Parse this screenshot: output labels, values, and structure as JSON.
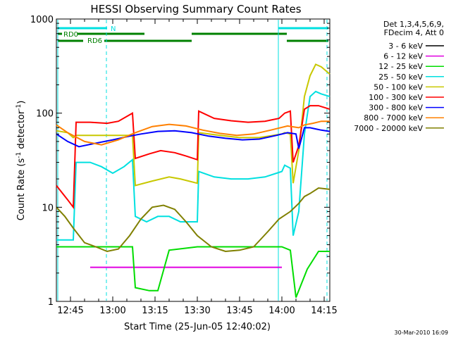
{
  "chart_data": {
    "type": "line",
    "title": "HESSI Observing Summary Count Rates",
    "xlabel": "Start Time (25-Jun-05 12:40:02)",
    "ylabel_main": "Count Rate (s",
    "ylabel_sup1": "-1",
    "ylabel_mid": " detector",
    "ylabel_sup2": "-1",
    "ylabel_end": ")",
    "y_scale": "log",
    "ylim": [
      1,
      1000
    ],
    "xlim_minutes": [
      0,
      97
    ],
    "xticks": [
      {
        "label": "12:45",
        "t": 5
      },
      {
        "label": "13:00",
        "t": 20
      },
      {
        "label": "13:15",
        "t": 35
      },
      {
        "label": "13:30",
        "t": 50
      },
      {
        "label": "13:45",
        "t": 65
      },
      {
        "label": "14:00",
        "t": 80
      },
      {
        "label": "14:15",
        "t": 95
      }
    ],
    "yticks": [
      {
        "label": "1",
        "v": 1
      },
      {
        "label": "10",
        "v": 10
      },
      {
        "label": "100",
        "v": 100
      },
      {
        "label": "1000",
        "v": 1000
      }
    ],
    "legend_header": [
      "Det 1,3,4,5,6,9,",
      "FDecim 4, Att 0"
    ],
    "legend_placement": "right",
    "footer_date": "30-Mar-2010 16:09",
    "flag_labels": {
      "rd0": "RD0",
      "rd6": "RD6",
      "n": "N"
    },
    "series": [
      {
        "name": "3 - 6 keV",
        "color": "#000000",
        "points": []
      },
      {
        "name": "6 - 12 keV",
        "color": "#e000e0",
        "points": [
          [
            12,
            2.3
          ],
          [
            35,
            2.3
          ],
          [
            50,
            2.3
          ],
          [
            72,
            2.3
          ],
          [
            80,
            2.3
          ]
        ]
      },
      {
        "name": "12 - 25 keV",
        "color": "#00dd00",
        "points": [
          [
            0,
            3.8
          ],
          [
            20,
            3.8
          ],
          [
            27,
            3.8
          ],
          [
            28,
            1.4
          ],
          [
            33,
            1.3
          ],
          [
            36,
            1.3
          ],
          [
            40,
            3.5
          ],
          [
            50,
            3.8
          ],
          [
            65,
            3.8
          ],
          [
            80,
            3.8
          ],
          [
            83,
            3.5
          ],
          [
            85,
            1.1
          ],
          [
            89,
            2.2
          ],
          [
            93,
            3.4
          ],
          [
            97,
            3.4
          ]
        ]
      },
      {
        "name": "25 - 50 keV",
        "color": "#00e0e0",
        "points": [
          [
            0,
            4.5
          ],
          [
            6,
            4.5
          ],
          [
            7,
            30
          ],
          [
            12,
            30
          ],
          [
            16,
            27
          ],
          [
            20,
            23
          ],
          [
            24,
            27
          ],
          [
            27,
            32
          ],
          [
            28,
            8
          ],
          [
            32,
            7
          ],
          [
            36,
            8
          ],
          [
            40,
            8
          ],
          [
            44,
            7
          ],
          [
            50,
            7
          ],
          [
            50.5,
            24
          ],
          [
            56,
            21
          ],
          [
            62,
            20
          ],
          [
            68,
            20
          ],
          [
            74,
            21
          ],
          [
            80,
            24
          ],
          [
            81,
            28
          ],
          [
            83,
            26
          ],
          [
            84,
            5
          ],
          [
            86,
            9
          ],
          [
            88,
            60
          ],
          [
            90,
            150
          ],
          [
            92,
            170
          ],
          [
            94,
            160
          ],
          [
            97,
            150
          ]
        ]
      },
      {
        "name": "50 - 100 keV",
        "color": "#c8c800",
        "points": [
          [
            0,
            65
          ],
          [
            4,
            62
          ],
          [
            6,
            55
          ],
          [
            7,
            58
          ],
          [
            16,
            58
          ],
          [
            27,
            58
          ],
          [
            28,
            17
          ],
          [
            34,
            19
          ],
          [
            40,
            21
          ],
          [
            44,
            20
          ],
          [
            50,
            18
          ],
          [
            50.5,
            62
          ],
          [
            58,
            58
          ],
          [
            65,
            55
          ],
          [
            72,
            55
          ],
          [
            80,
            60
          ],
          [
            81,
            62
          ],
          [
            83,
            60
          ],
          [
            84,
            18
          ],
          [
            86,
            40
          ],
          [
            88,
            150
          ],
          [
            90,
            250
          ],
          [
            92,
            330
          ],
          [
            94,
            310
          ],
          [
            97,
            260
          ]
        ]
      },
      {
        "name": "100 - 300 keV",
        "color": "#ff0000",
        "points": [
          [
            0,
            17
          ],
          [
            4,
            12
          ],
          [
            6,
            10
          ],
          [
            7,
            80
          ],
          [
            12,
            80
          ],
          [
            18,
            78
          ],
          [
            22,
            82
          ],
          [
            27,
            100
          ],
          [
            28,
            33
          ],
          [
            33,
            37
          ],
          [
            37,
            40
          ],
          [
            42,
            38
          ],
          [
            46,
            35
          ],
          [
            50,
            32
          ],
          [
            50.5,
            105
          ],
          [
            56,
            88
          ],
          [
            62,
            83
          ],
          [
            68,
            80
          ],
          [
            74,
            82
          ],
          [
            79,
            88
          ],
          [
            81,
            100
          ],
          [
            83,
            105
          ],
          [
            84,
            30
          ],
          [
            86,
            45
          ],
          [
            88,
            110
          ],
          [
            90,
            120
          ],
          [
            93,
            120
          ],
          [
            97,
            110
          ]
        ]
      },
      {
        "name": "300 - 800 keV",
        "color": "#0000ff",
        "points": [
          [
            0,
            60
          ],
          [
            4,
            50
          ],
          [
            8,
            44
          ],
          [
            14,
            48
          ],
          [
            20,
            52
          ],
          [
            26,
            57
          ],
          [
            30,
            60
          ],
          [
            36,
            64
          ],
          [
            42,
            65
          ],
          [
            48,
            62
          ],
          [
            54,
            57
          ],
          [
            60,
            54
          ],
          [
            66,
            52
          ],
          [
            72,
            53
          ],
          [
            78,
            58
          ],
          [
            82,
            62
          ],
          [
            85,
            60
          ],
          [
            86,
            42
          ],
          [
            88,
            70
          ],
          [
            90,
            70
          ],
          [
            92,
            68
          ],
          [
            94,
            66
          ],
          [
            97,
            64
          ]
        ]
      },
      {
        "name": "800 - 7000 keV",
        "color": "#ff8000",
        "points": [
          [
            0,
            75
          ],
          [
            4,
            62
          ],
          [
            10,
            50
          ],
          [
            16,
            46
          ],
          [
            22,
            52
          ],
          [
            28,
            62
          ],
          [
            34,
            72
          ],
          [
            40,
            76
          ],
          [
            46,
            73
          ],
          [
            52,
            66
          ],
          [
            58,
            61
          ],
          [
            64,
            58
          ],
          [
            70,
            60
          ],
          [
            76,
            66
          ],
          [
            82,
            73
          ],
          [
            86,
            70
          ],
          [
            88,
            75
          ],
          [
            91,
            78
          ],
          [
            94,
            82
          ],
          [
            97,
            82
          ]
        ]
      },
      {
        "name": "7000 - 20000 keV",
        "color": "#808000",
        "points": [
          [
            0,
            10
          ],
          [
            3,
            8
          ],
          [
            6,
            6
          ],
          [
            10,
            4.2
          ],
          [
            14,
            3.8
          ],
          [
            18,
            3.4
          ],
          [
            22,
            3.6
          ],
          [
            26,
            5
          ],
          [
            30,
            7.5
          ],
          [
            34,
            10
          ],
          [
            38,
            10.5
          ],
          [
            42,
            9.5
          ],
          [
            46,
            7
          ],
          [
            50,
            5
          ],
          [
            55,
            3.8
          ],
          [
            60,
            3.4
          ],
          [
            65,
            3.5
          ],
          [
            70,
            3.8
          ],
          [
            75,
            5.5
          ],
          [
            79,
            7.5
          ],
          [
            83,
            9
          ],
          [
            86,
            11
          ],
          [
            88,
            13
          ],
          [
            90,
            14
          ],
          [
            93,
            16
          ],
          [
            97,
            15.5
          ]
        ]
      }
    ]
  }
}
